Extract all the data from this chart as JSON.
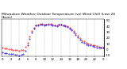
{
  "title": "Milwaukee Weather Outdoor Temperature (vs) Wind Chill (Last 24 Hours)",
  "background_color": "#ffffff",
  "plot_bg_color": "#ffffff",
  "grid_color": "#888888",
  "line1_color": "#ff0000",
  "line2_color": "#0000ff",
  "ylim": [
    -12,
    52
  ],
  "yticks": [
    -10,
    0,
    10,
    20,
    30,
    40,
    50
  ],
  "ytick_labels": [
    "-10",
    "0",
    "10",
    "20",
    "30",
    "40",
    "50"
  ],
  "time_points": 49,
  "temp_values": [
    3,
    2,
    2,
    1,
    1,
    0,
    -1,
    -1,
    -2,
    -1,
    0,
    5,
    12,
    22,
    32,
    38,
    42,
    43,
    44,
    44,
    43,
    43,
    44,
    44,
    43,
    42,
    41,
    43,
    43,
    42,
    41,
    40,
    38,
    35,
    32,
    28,
    24,
    20,
    16,
    14,
    12,
    10,
    9,
    8,
    7,
    6,
    5,
    4,
    4
  ],
  "wind_chill_values": [
    -5,
    -6,
    -6,
    -7,
    -7,
    -8,
    -9,
    -9,
    -10,
    -9,
    -7,
    -2,
    8,
    19,
    29,
    36,
    41,
    42,
    43,
    43,
    42,
    43,
    43,
    43,
    42,
    41,
    40,
    43,
    43,
    41,
    40,
    39,
    36,
    33,
    29,
    25,
    21,
    17,
    13,
    11,
    9,
    8,
    7,
    6,
    5,
    4,
    4,
    3,
    3
  ],
  "vline_positions": [
    0,
    4,
    8,
    12,
    16,
    20,
    24,
    28,
    32,
    36,
    40,
    44,
    48
  ],
  "xtick_positions": [
    0,
    4,
    8,
    12,
    16,
    20,
    24,
    28,
    32,
    36,
    40,
    44,
    48
  ],
  "xtick_labels": [
    "0",
    "2",
    "4",
    "6",
    "8",
    "10",
    "12",
    "14",
    "16",
    "18",
    "20",
    "22",
    "0"
  ],
  "title_fontsize": 3.2,
  "tick_fontsize": 2.8,
  "marker_size": 0.8,
  "linewidth": 0.5
}
